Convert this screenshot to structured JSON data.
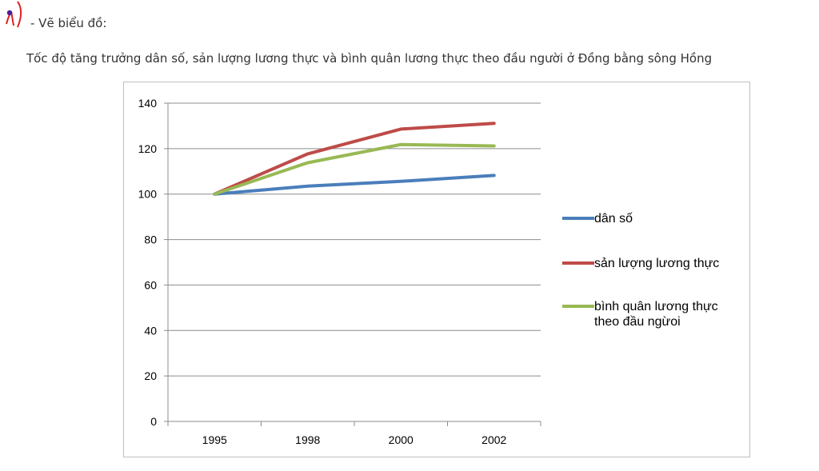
{
  "heading": {
    "text": "- Vẽ biểu đồ:",
    "mark_icon": "red-pen-mark-icon",
    "mark_color": "#e02020"
  },
  "subtitle": "Tốc độ tăng trưởng dân số, sản lượng lương thực và bình quân lương thực theo đầu người ở Đồng bằng sông Hồng",
  "chart_data": {
    "type": "line",
    "title": "Tốc độ tăng trưởng dân số, sản lượng lương thực và bình quân lương thực theo đầu người ở Đồng bằng sông Hồng",
    "xlabel": "",
    "ylabel": "",
    "categories": [
      "1995",
      "1998",
      "2000",
      "2002"
    ],
    "ylim": [
      0,
      140
    ],
    "yticks": [
      "0",
      "20",
      "40",
      "60",
      "80",
      "100",
      "120",
      "140"
    ],
    "grid": true,
    "legend_position": "right",
    "series": [
      {
        "name": "dân số",
        "color": "#4a7ebb",
        "values": [
          100,
          103.5,
          105.6,
          108.2
        ]
      },
      {
        "name": "sản lượng lương thực",
        "color": "#be4b48",
        "values": [
          100,
          117.7,
          128.6,
          131.1
        ]
      },
      {
        "name": "bình quân lương thực theo đầu ngừoi",
        "legend_lines": [
          "bình quân lương thực",
          "theo đầu ngừoi"
        ],
        "color": "#98b954",
        "values": [
          100,
          113.8,
          121.8,
          121.2
        ]
      }
    ]
  }
}
